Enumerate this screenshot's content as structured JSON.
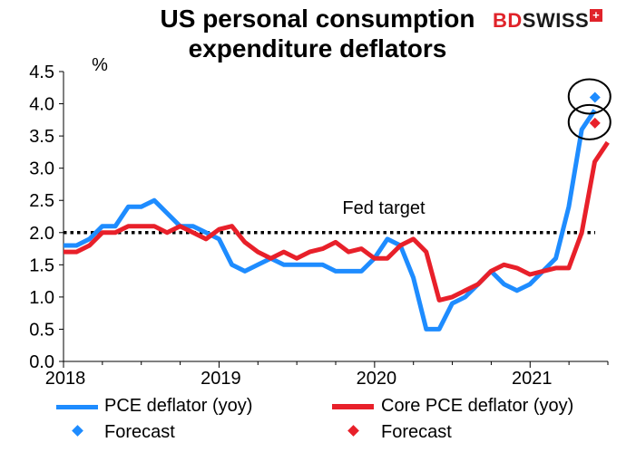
{
  "title_line1": "US personal consumption",
  "title_line2": "expenditure deflators",
  "logo": {
    "part1": "BD",
    "part2": "SWISS",
    "mark": "+"
  },
  "chart_data": {
    "type": "line",
    "title": "US personal consumption expenditure deflators",
    "ylabel": "%",
    "ylim": [
      0.0,
      4.5
    ],
    "yticks": [
      0.0,
      0.5,
      1.0,
      1.5,
      2.0,
      2.5,
      3.0,
      3.5,
      4.0,
      4.5
    ],
    "ytick_labels": [
      "0.0",
      "0.5",
      "1.0",
      "1.5",
      "2.0",
      "2.5",
      "3.0",
      "3.5",
      "4.0",
      "4.5"
    ],
    "xlim": [
      2018.0,
      2021.5
    ],
    "xticks": [
      2018,
      2019,
      2020,
      2021
    ],
    "xtick_labels": [
      "2018",
      "2019",
      "2020",
      "2021"
    ],
    "reference_line": {
      "y": 2.0,
      "label": "Fed target",
      "style": "dotted"
    },
    "series": [
      {
        "name": "PCE deflator (yoy)",
        "color": "#1e8cff",
        "x_start": 2018.0,
        "step": 0.0833,
        "values": [
          1.8,
          1.8,
          1.9,
          2.1,
          2.1,
          2.4,
          2.4,
          2.5,
          2.3,
          2.1,
          2.1,
          2.0,
          1.9,
          1.5,
          1.4,
          1.5,
          1.6,
          1.5,
          1.5,
          1.5,
          1.5,
          1.4,
          1.4,
          1.4,
          1.6,
          1.9,
          1.8,
          1.3,
          0.5,
          0.5,
          0.9,
          1.0,
          1.2,
          1.4,
          1.2,
          1.1,
          1.2,
          1.4,
          1.6,
          2.4,
          3.6,
          3.9
        ]
      },
      {
        "name": "Core PCE deflator (yoy)",
        "color": "#e8202a",
        "x_start": 2018.0,
        "step": 0.0833,
        "values": [
          1.7,
          1.7,
          1.8,
          2.0,
          2.0,
          2.1,
          2.1,
          2.1,
          2.0,
          2.1,
          2.0,
          1.9,
          2.05,
          2.1,
          1.85,
          1.7,
          1.6,
          1.7,
          1.6,
          1.7,
          1.75,
          1.85,
          1.7,
          1.75,
          1.6,
          1.6,
          1.8,
          1.9,
          1.7,
          0.95,
          1.0,
          1.1,
          1.2,
          1.4,
          1.5,
          1.45,
          1.35,
          1.4,
          1.45,
          1.45,
          2.0,
          3.1,
          3.4
        ]
      }
    ],
    "forecasts": [
      {
        "name": "Forecast",
        "series": "PCE deflator (yoy)",
        "x": 2021.417,
        "y": 4.1,
        "color": "#1e8cff"
      },
      {
        "name": "Forecast",
        "series": "Core PCE deflator (yoy)",
        "x": 2021.417,
        "y": 3.7,
        "color": "#e8202a"
      }
    ],
    "annotations": [
      "Fed target"
    ],
    "legend_position": "bottom"
  },
  "legend": {
    "pce": "PCE deflator (yoy)",
    "core": "Core PCE deflator (yoy)",
    "forecast_blue": "Forecast",
    "forecast_red": "Forecast"
  }
}
